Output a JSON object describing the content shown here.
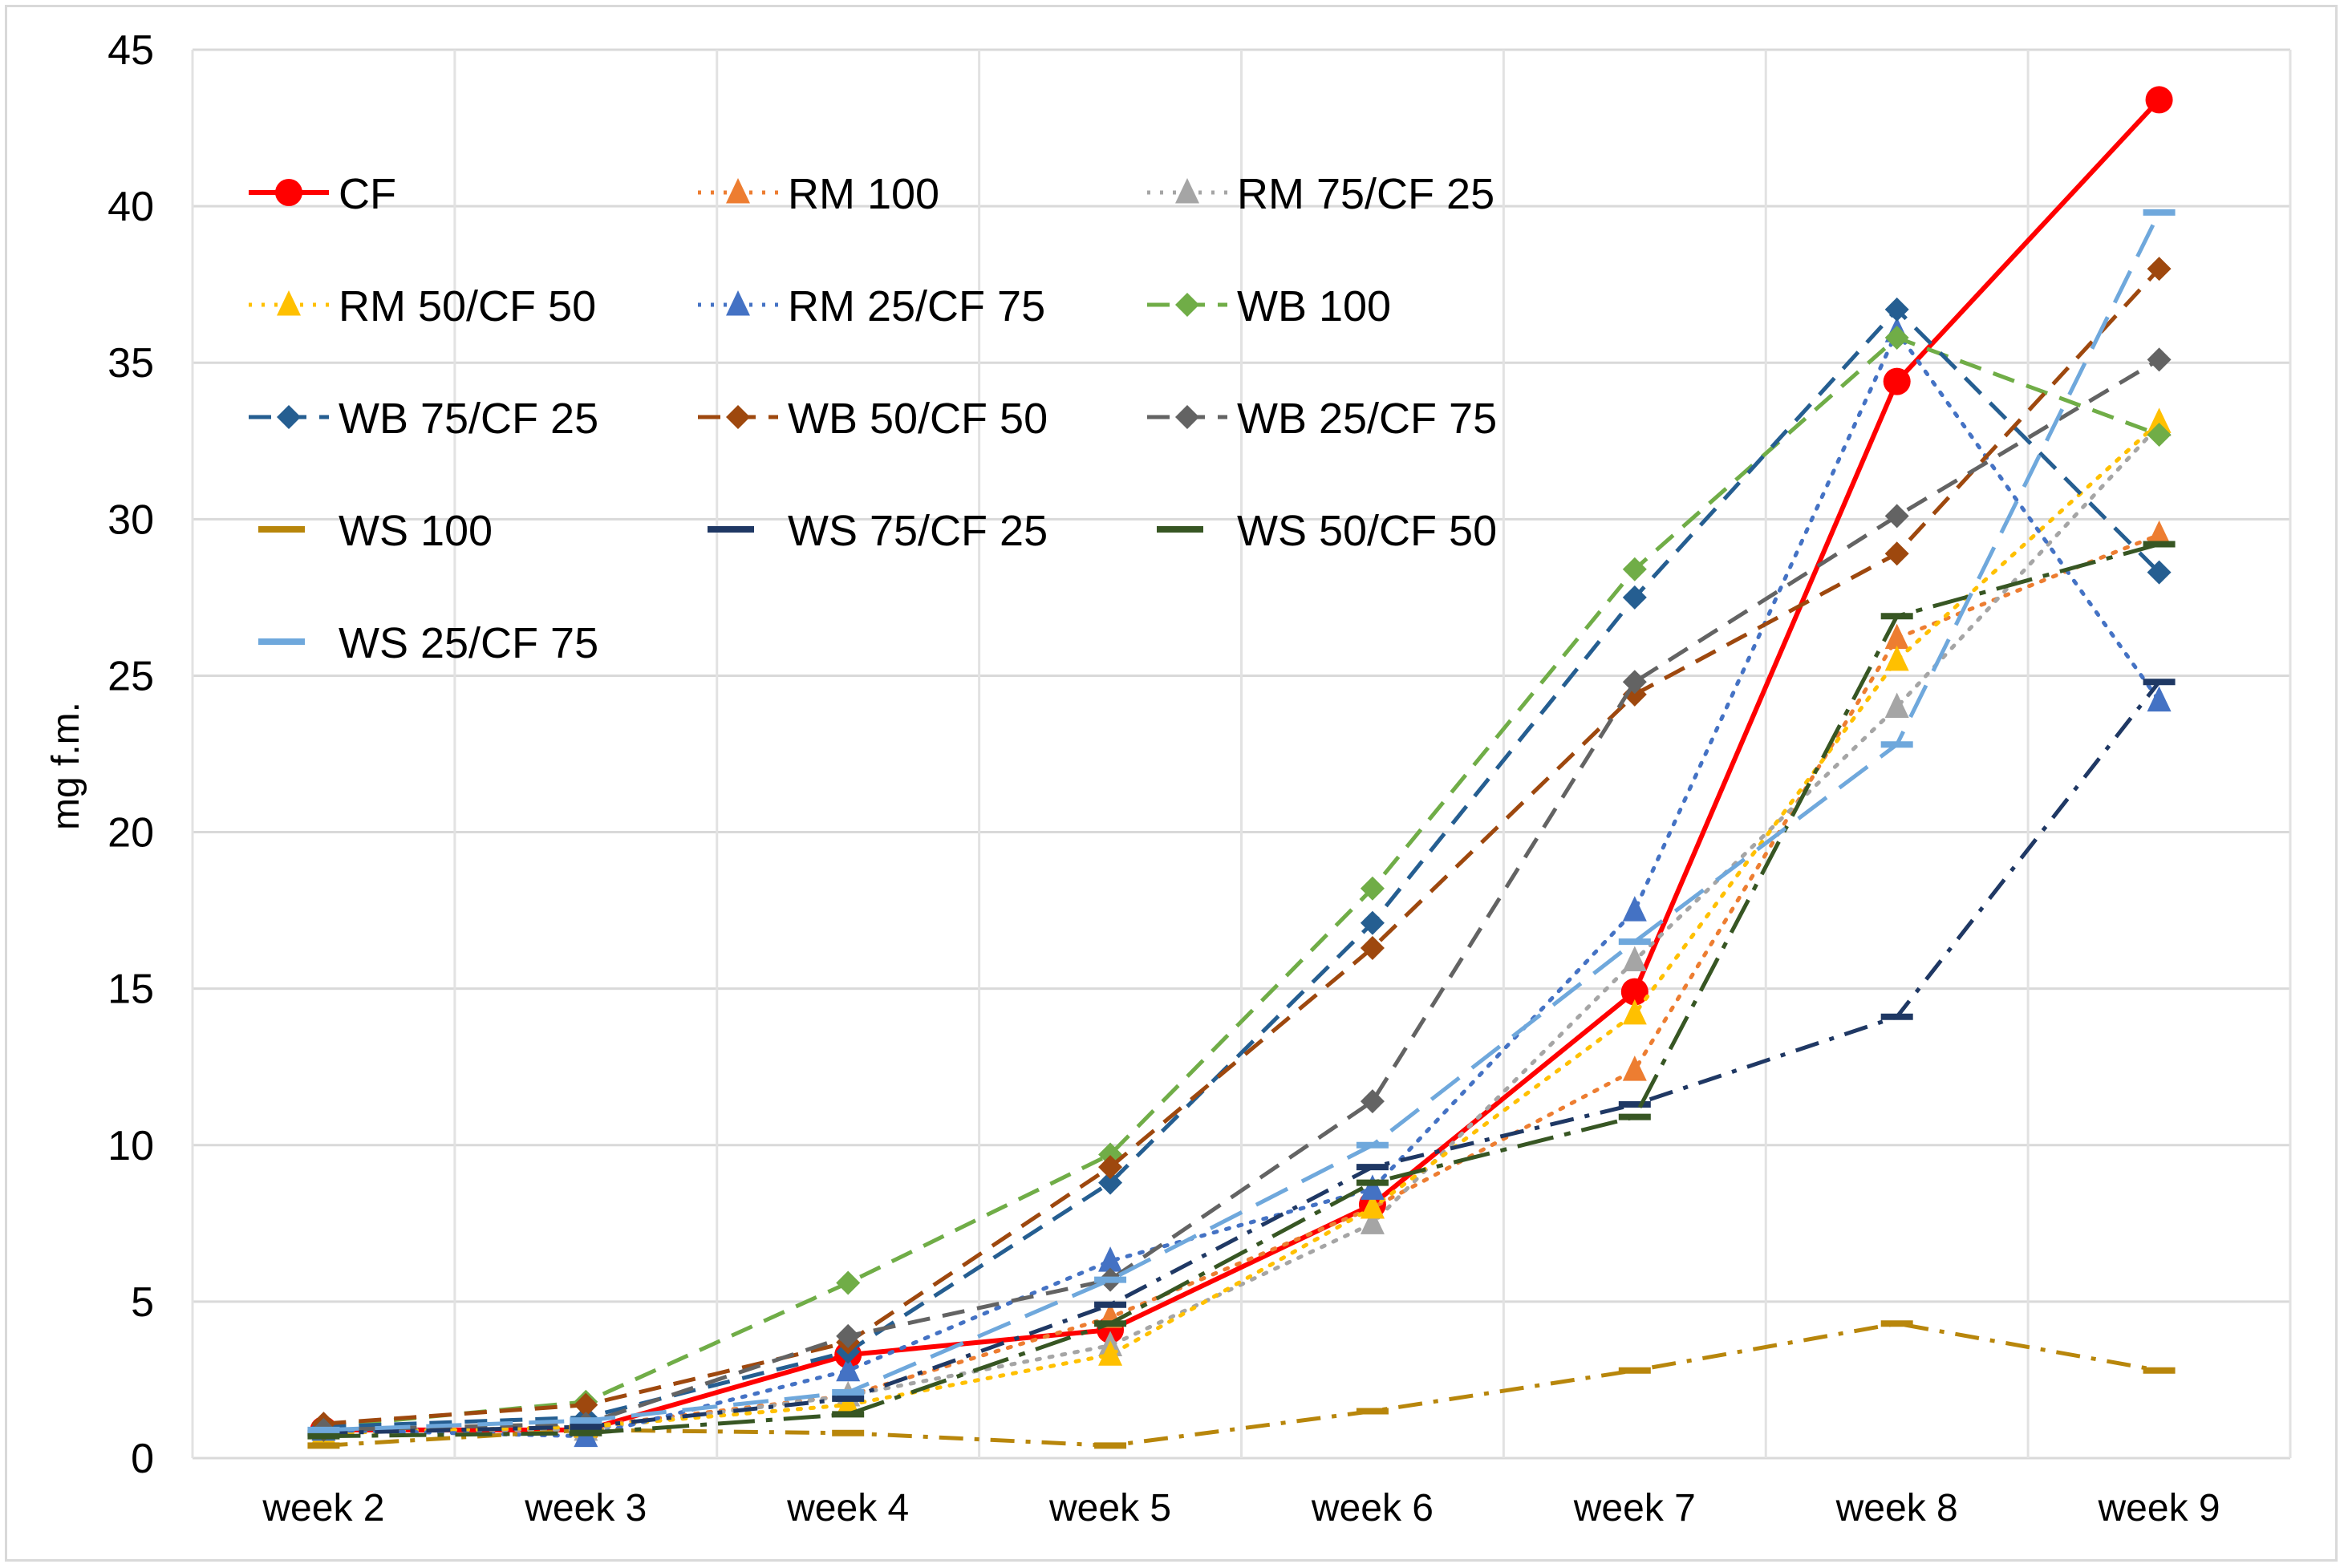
{
  "chart_data": {
    "type": "line",
    "title": "",
    "xlabel": "",
    "ylabel": "mg f.m.",
    "ylim": [
      0,
      45
    ],
    "yticks": [
      "0",
      "5",
      "10",
      "15",
      "20",
      "25",
      "30",
      "35",
      "40",
      "45"
    ],
    "yticks_values": [
      0,
      5,
      10,
      15,
      20,
      25,
      30,
      35,
      40,
      45
    ],
    "grid": true,
    "legend_position": "top-left",
    "categories": [
      "week 2",
      "week 3",
      "week 4",
      "week 5",
      "week 6",
      "week 7",
      "week 8",
      "week 9"
    ],
    "series": [
      {
        "name": "CF",
        "color": "#ff0000",
        "dash": "solid",
        "marker": "circle",
        "values": [
          0.9,
          0.9,
          3.3,
          4.1,
          8.1,
          14.9,
          34.4,
          43.4
        ]
      },
      {
        "name": "RM 100",
        "color": "#ed7d31",
        "dash": "dot",
        "marker": "triangle",
        "values": [
          0.8,
          1.0,
          2.0,
          4.5,
          8.0,
          12.4,
          26.2,
          29.5
        ]
      },
      {
        "name": "RM 75/CF 25",
        "color": "#a5a5a5",
        "dash": "dot",
        "marker": "triangle",
        "values": [
          0.9,
          0.9,
          2.0,
          3.6,
          7.5,
          15.9,
          24.0,
          33.0
        ]
      },
      {
        "name": "RM 50/CF 50",
        "color": "#ffc000",
        "dash": "dot",
        "marker": "triangle",
        "values": [
          0.8,
          1.0,
          1.7,
          3.3,
          8.0,
          14.2,
          25.5,
          33.1
        ]
      },
      {
        "name": "RM 25/CF 75",
        "color": "#4472c4",
        "dash": "dot",
        "marker": "triangle",
        "values": [
          0.9,
          0.7,
          2.8,
          6.3,
          8.6,
          17.5,
          36.0,
          24.2
        ]
      },
      {
        "name": "WB 100",
        "color": "#70ad47",
        "dash": "dash",
        "marker": "diamond",
        "values": [
          1.0,
          1.8,
          5.6,
          9.7,
          18.2,
          28.4,
          35.8,
          32.7
        ]
      },
      {
        "name": "WB 75/CF 25",
        "color": "#255e91",
        "dash": "dash",
        "marker": "diamond",
        "values": [
          1.0,
          1.3,
          3.4,
          8.8,
          17.1,
          27.5,
          36.7,
          28.3
        ]
      },
      {
        "name": "WB 50/CF 50",
        "color": "#9e480e",
        "dash": "dash",
        "marker": "diamond",
        "values": [
          1.1,
          1.7,
          3.7,
          9.3,
          16.3,
          24.4,
          28.9,
          38.0
        ]
      },
      {
        "name": "WB 25/CF 75",
        "color": "#636363",
        "dash": "dash",
        "marker": "diamond",
        "values": [
          0.9,
          1.1,
          3.9,
          5.7,
          11.4,
          24.8,
          30.1,
          35.1
        ]
      },
      {
        "name": "WS 100",
        "color": "#b8860b",
        "dash": "dashdot",
        "marker": "dash",
        "values": [
          0.4,
          0.9,
          0.8,
          0.4,
          1.5,
          2.8,
          4.3,
          2.8
        ]
      },
      {
        "name": "WS 75/CF 25",
        "color": "#1f3864",
        "dash": "dashdot",
        "marker": "dash",
        "values": [
          0.8,
          1.0,
          1.9,
          4.9,
          9.3,
          11.3,
          14.1,
          24.8
        ]
      },
      {
        "name": "WS 50/CF 50",
        "color": "#375623",
        "dash": "longdashdot",
        "marker": "dash",
        "values": [
          0.7,
          0.8,
          1.4,
          4.3,
          8.8,
          10.9,
          26.9,
          29.2
        ]
      },
      {
        "name": "WS 25/CF 75",
        "color": "#6fa8dc",
        "dash": "longdash",
        "marker": "dash",
        "values": [
          0.9,
          1.2,
          2.1,
          5.7,
          10.0,
          16.5,
          22.8,
          39.8
        ]
      }
    ]
  }
}
